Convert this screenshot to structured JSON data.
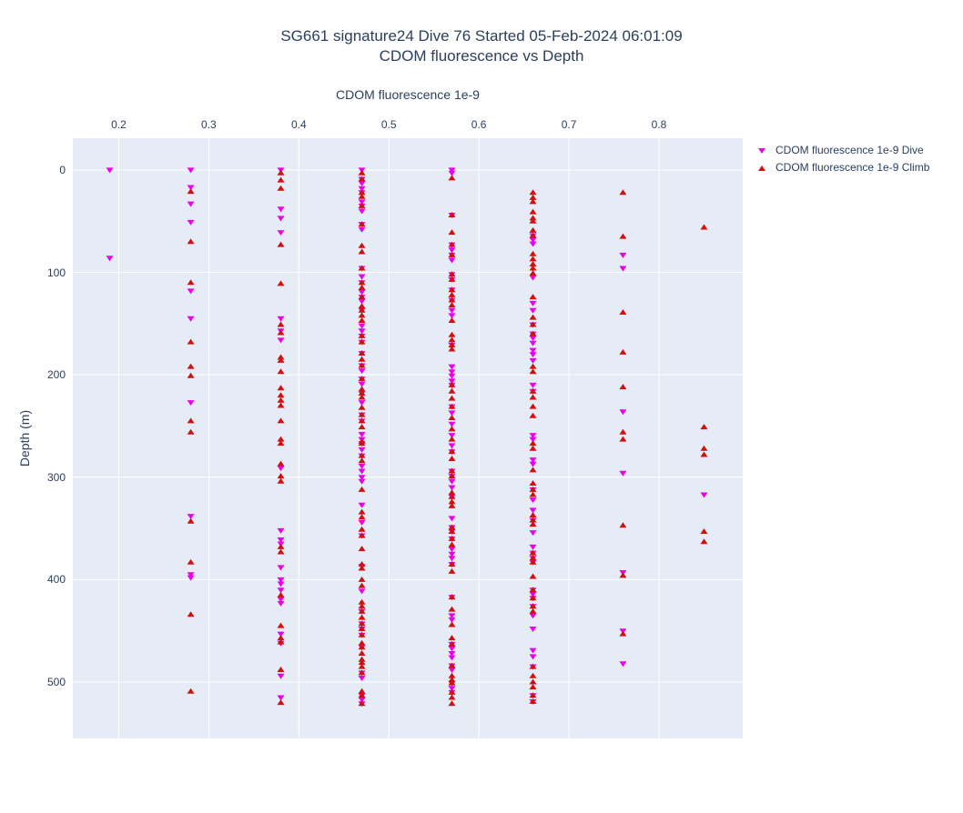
{
  "title": {
    "line1": "SG661 signature24 Dive 76 Started 05-Feb-2024 06:01:09",
    "line2": "CDOM fluorescence vs Depth"
  },
  "axes": {
    "x": {
      "title": "CDOM fluorescence 1e-9",
      "side": "top"
    },
    "y": {
      "title": "Depth (m)",
      "direction": "reversed"
    }
  },
  "legend": {
    "items": [
      {
        "label": "CDOM fluorescence 1e-9 Dive",
        "marker": "triangle-down",
        "color": "#ec00ec"
      },
      {
        "label": "CDOM fluorescence 1e-9 Climb",
        "marker": "triangle-up",
        "color": "#d11010"
      }
    ]
  },
  "colors": {
    "plot_bg": "#e5ecf6",
    "grid": "#ffffff",
    "text": "#2a3f5f",
    "dive": "#ec00ec",
    "climb": "#d11010"
  },
  "chart_data": {
    "type": "scatter",
    "title": "SG661 signature24 Dive 76 Started 05-Feb-2024 06:01:09 — CDOM fluorescence vs Depth",
    "xlabel": "CDOM fluorescence 1e-9",
    "ylabel": "Depth (m)",
    "xlim": [
      0.149,
      0.893
    ],
    "ylim": [
      -31,
      555
    ],
    "y_inverted": true,
    "xticks": [
      0.2,
      0.3,
      0.4,
      0.5,
      0.6,
      0.7,
      0.8
    ],
    "xtick_labels": [
      "0.2",
      "0.3",
      "0.4",
      "0.5",
      "0.6",
      "0.7",
      "0.8"
    ],
    "yticks": [
      0,
      100,
      200,
      300,
      400,
      500
    ],
    "ytick_labels": [
      "0",
      "100",
      "200",
      "300",
      "400",
      "500"
    ],
    "grid": true,
    "legend_position": "top-right",
    "series": [
      {
        "name": "CDOM fluorescence 1e-9 Dive",
        "marker": "triangle-down",
        "color": "#ec00ec",
        "columns": [
          {
            "x": 0.19,
            "depths": [
              0,
              86
            ]
          },
          {
            "x": 0.28,
            "depths": [
              0,
              17,
              33,
              51,
              118,
              145,
              227,
              338,
              395,
              398
            ]
          },
          {
            "x": 0.38,
            "depths": [
              0,
              38,
              47,
              61,
              145,
              157,
              166,
              291,
              352,
              361,
              365,
              388,
              400,
              404,
              410,
              419,
              423,
              453,
              462,
              494,
              515
            ]
          },
          {
            "x": 0.47,
            "depths": [
              0,
              9,
              13,
              18,
              22,
              31,
              35,
              40,
              53,
              58,
              96,
              104,
              110,
              119,
              124,
              128,
              137,
              152,
              157,
              162,
              168,
              179,
              191,
              196,
              204,
              209,
              218,
              227,
              239,
              245,
              258,
              263,
              267,
              273,
              279,
              289,
              294,
              300,
              304,
              327,
              344,
              357,
              387,
              411,
              431,
              443,
              448,
              454,
              466,
              491,
              496,
              513,
              517,
              521
            ]
          },
          {
            "x": 0.57,
            "depths": [
              0,
              3,
              44,
              73,
              78,
              83,
              88,
              102,
              107,
              117,
              127,
              137,
              142,
              171,
              192,
              197,
              201,
              206,
              210,
              231,
              237,
              248,
              259,
              269,
              275,
              294,
              299,
              304,
              310,
              319,
              340,
              349,
              353,
              360,
              370,
              375,
              379,
              385,
              417,
              435,
              439,
              463,
              467,
              472,
              476,
              484,
              488,
              501,
              506,
              510
            ]
          },
          {
            "x": 0.66,
            "depths": [
              64,
              68,
              72,
              105,
              130,
              137,
              151,
              160,
              164,
              169,
              176,
              180,
              186,
              210,
              216,
              259,
              263,
              283,
              287,
              312,
              322,
              332,
              342,
              354,
              368,
              374,
              379,
              383,
              410,
              414,
              418,
              426,
              435,
              448,
              469,
              475,
              485,
              513,
              519
            ]
          },
          {
            "x": 0.76,
            "depths": [
              83,
              96,
              236,
              296,
              393,
              450,
              482
            ]
          },
          {
            "x": 0.85,
            "depths": [
              317
            ]
          }
        ]
      },
      {
        "name": "CDOM fluorescence 1e-9 Climb",
        "marker": "triangle-up",
        "color": "#d11010",
        "columns": [
          {
            "x": 0.28,
            "depths": [
              21,
              70,
              110,
              168,
              192,
              201,
              245,
              256,
              343,
              383,
              434,
              509
            ]
          },
          {
            "x": 0.38,
            "depths": [
              3,
              10,
              18,
              73,
              111,
              151,
              159,
              183,
              186,
              197,
              213,
              220,
              225,
              230,
              245,
              263,
              267,
              287,
              299,
              304,
              368,
              373,
              415,
              445,
              457,
              461,
              488,
              520
            ]
          },
          {
            "x": 0.47,
            "depths": [
              3,
              9,
              22,
              26,
              35,
              53,
              74,
              80,
              96,
              110,
              115,
              124,
              133,
              137,
              142,
              147,
              162,
              168,
              179,
              185,
              191,
              204,
              214,
              218,
              222,
              232,
              239,
              245,
              251,
              265,
              267,
              279,
              284,
              312,
              334,
              339,
              351,
              357,
              370,
              385,
              389,
              400,
              406,
              422,
              426,
              431,
              437,
              443,
              448,
              454,
              462,
              466,
              472,
              478,
              481,
              485,
              491,
              509,
              513,
              521
            ]
          },
          {
            "x": 0.57,
            "depths": [
              8,
              44,
              61,
              73,
              83,
              102,
              107,
              117,
              122,
              127,
              132,
              147,
              161,
              166,
              171,
              175,
              210,
              216,
              223,
              231,
              242,
              253,
              263,
              275,
              282,
              294,
              299,
              315,
              319,
              324,
              328,
              349,
              353,
              360,
              366,
              385,
              392,
              417,
              429,
              444,
              457,
              463,
              484,
              494,
              498,
              501,
              510,
              515,
              521
            ]
          },
          {
            "x": 0.66,
            "depths": [
              22,
              27,
              31,
              41,
              47,
              50,
              59,
              64,
              82,
              87,
              92,
              96,
              101,
              124,
              144,
              151,
              160,
              192,
              197,
              216,
              222,
              231,
              240,
              267,
              272,
              293,
              306,
              312,
              317,
              337,
              342,
              346,
              374,
              379,
              383,
              397,
              410,
              418,
              426,
              431,
              485,
              494,
              500,
              505,
              513,
              519
            ]
          },
          {
            "x": 0.76,
            "depths": [
              22,
              65,
              139,
              178,
              212,
              256,
              263,
              347,
              396,
              453
            ]
          },
          {
            "x": 0.85,
            "depths": [
              56,
              251,
              272,
              278,
              353,
              363
            ]
          }
        ]
      }
    ]
  }
}
